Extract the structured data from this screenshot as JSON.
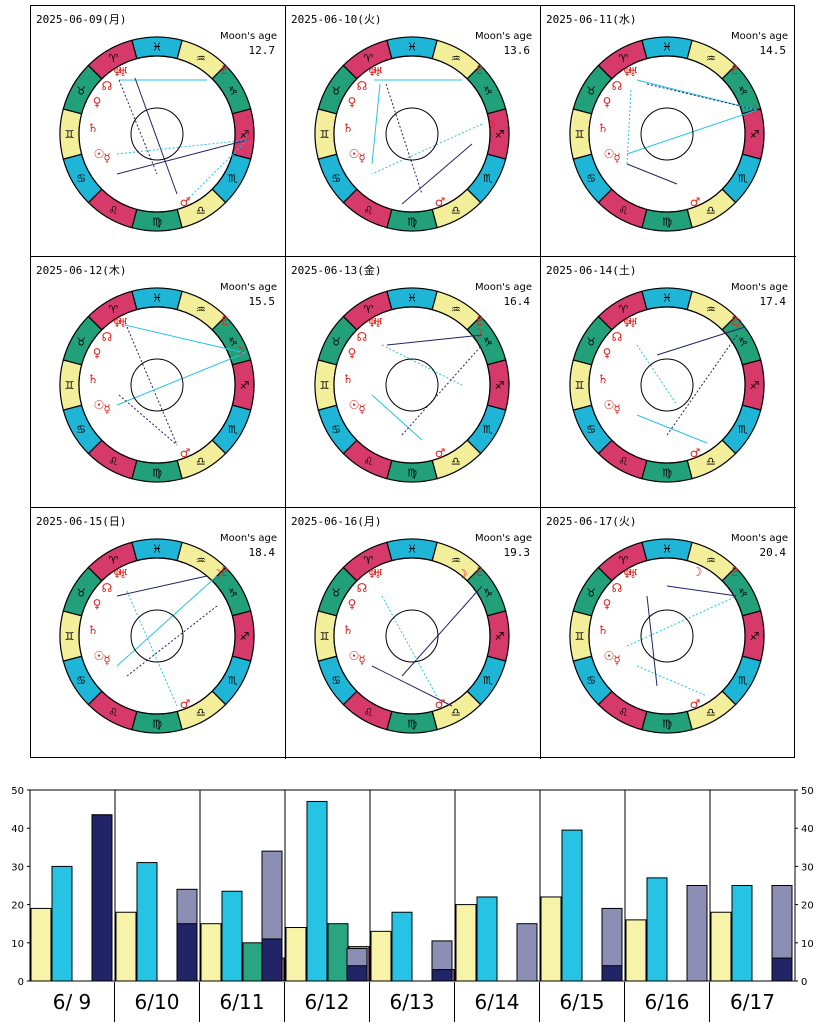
{
  "charts": [
    {
      "date": "2025-06-09(月)",
      "moon_label": "Moon's age",
      "moon_age": "12.7"
    },
    {
      "date": "2025-06-10(火)",
      "moon_label": "Moon's age",
      "moon_age": "13.6"
    },
    {
      "date": "2025-06-11(水)",
      "moon_label": "Moon's age",
      "moon_age": "14.5"
    },
    {
      "date": "2025-06-12(木)",
      "moon_label": "Moon's age",
      "moon_age": "15.5"
    },
    {
      "date": "2025-06-13(金)",
      "moon_label": "Moon's age",
      "moon_age": "16.4"
    },
    {
      "date": "2025-06-14(土)",
      "moon_label": "Moon's age",
      "moon_age": "17.4"
    },
    {
      "date": "2025-06-15(日)",
      "moon_label": "Moon's age",
      "moon_age": "18.4"
    },
    {
      "date": "2025-06-16(月)",
      "moon_label": "Moon's age",
      "moon_age": "19.3"
    },
    {
      "date": "2025-06-17(火)",
      "moon_label": "Moon's age",
      "moon_age": "20.4"
    }
  ],
  "zodiac_signs": [
    "♓",
    "♒",
    "♑",
    "♐",
    "♏",
    "♎",
    "♍",
    "♌",
    "♋",
    "♊",
    "♉",
    "♈"
  ],
  "sign_colors": [
    "#1fb5d6",
    "#f2ee9a",
    "#22a07a",
    "#d63a6a"
  ],
  "planet_glyphs": {
    "sun": "☉",
    "moon": "☽",
    "mercury": "☿",
    "venus": "♀",
    "mars": "♂",
    "pluto": "♇",
    "neptune": "♆",
    "uranus": "♅",
    "saturn": "♄",
    "node": "☊"
  },
  "chart_data": {
    "type": "bar",
    "categories": [
      "6/ 9",
      "6/10",
      "6/11",
      "6/12",
      "6/13",
      "6/14",
      "6/15",
      "6/16",
      "6/17"
    ],
    "ylim": [
      0,
      50
    ],
    "yticks": [
      0,
      10,
      20,
      30,
      40,
      50
    ],
    "series": [
      {
        "color": "#f7f3a8",
        "values": [
          19,
          18,
          15,
          14,
          13,
          20,
          22,
          16,
          18
        ]
      },
      {
        "color": "#27c3e5",
        "values": [
          30,
          31,
          23.5,
          47,
          18,
          22,
          39.5,
          27,
          25
        ]
      },
      {
        "color": "#8c8eb3",
        "values": [
          0,
          24,
          34,
          8.5,
          10.5,
          15,
          19,
          25,
          25
        ]
      },
      {
        "color": "#2aa582",
        "values": [
          0,
          0,
          10,
          15,
          0,
          0,
          0,
          0,
          0
        ]
      },
      {
        "color": "#e28cb0",
        "values": [
          0,
          0,
          6,
          9,
          3,
          0,
          0,
          0,
          0
        ]
      },
      {
        "color": "#212466",
        "values": [
          43.5,
          15,
          11,
          4,
          3,
          0,
          4,
          0,
          6
        ]
      }
    ]
  }
}
